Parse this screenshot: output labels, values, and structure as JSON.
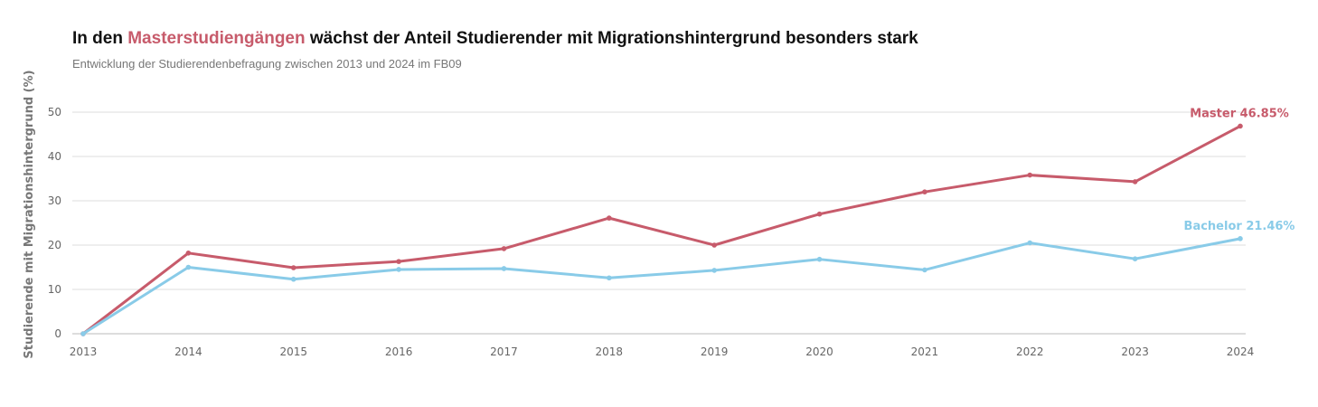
{
  "header": {
    "title_prefix": "In den ",
    "title_highlight": "Masterstudiengängen",
    "title_suffix": " wächst der Anteil Studierender mit Migrationshintergrund besonders stark",
    "subtitle": "Entwicklung der Studierendenbefragung zwischen 2013 und 2024 im FB09"
  },
  "chart_data": {
    "type": "line",
    "title": "In den Masterstudiengängen wächst der Anteil Studierender mit Migrationshintergrund besonders stark",
    "subtitle": "Entwicklung der Studierendenbefragung zwischen 2013 und 2024 im FB09",
    "xlabel": "",
    "ylabel": "Studierende mit Migrationshintergrund (%)",
    "x": [
      "2013",
      "2014",
      "2015",
      "2016",
      "2017",
      "2018",
      "2019",
      "2020",
      "2021",
      "2022",
      "2023",
      "2024"
    ],
    "ylim": [
      0,
      50
    ],
    "yticks": [
      0,
      10,
      20,
      30,
      40,
      50
    ],
    "grid": true,
    "series": [
      {
        "name": "Master",
        "color": "#c75b6b",
        "end_label": "Master 46.85%",
        "values": [
          0,
          18.2,
          14.9,
          16.3,
          19.2,
          26.1,
          20.0,
          27.0,
          32.0,
          35.8,
          34.3,
          46.85
        ]
      },
      {
        "name": "Bachelor",
        "color": "#89cbe8",
        "end_label": "Bachelor 21.46%",
        "values": [
          0,
          15.0,
          12.3,
          14.5,
          14.7,
          12.6,
          14.3,
          16.8,
          14.4,
          20.5,
          16.9,
          21.46
        ]
      }
    ]
  }
}
